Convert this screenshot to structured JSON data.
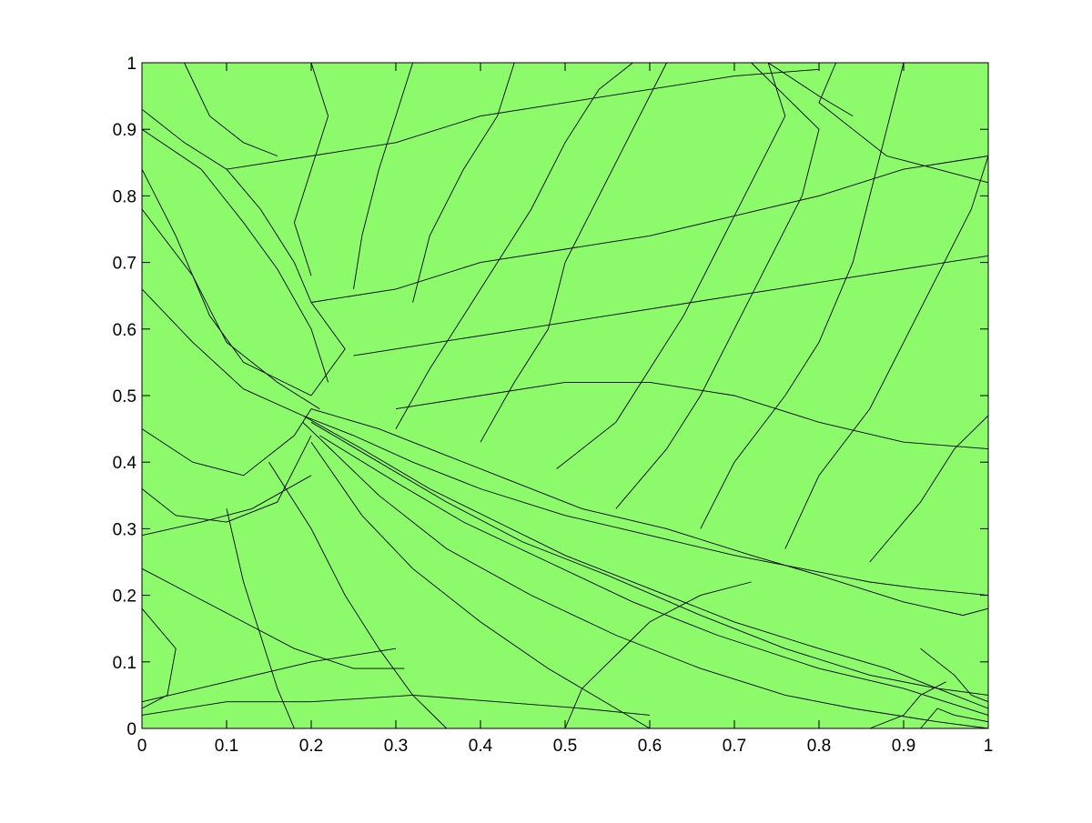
{
  "chart_data": {
    "type": "mesh",
    "title": "",
    "xlabel": "",
    "ylabel": "",
    "xlim": [
      0,
      1
    ],
    "ylim": [
      0,
      1
    ],
    "grid": false,
    "legend": "none",
    "x_ticks": [
      "0",
      "0.1",
      "0.2",
      "0.3",
      "0.4",
      "0.5",
      "0.6",
      "0.7",
      "0.8",
      "0.9",
      "1"
    ],
    "y_ticks": [
      "0",
      "0.1",
      "0.2",
      "0.3",
      "0.4",
      "0.5",
      "0.6",
      "0.7",
      "0.8",
      "0.9",
      "1"
    ],
    "fill_color": "#8CFA6B",
    "edge_color": "#000000",
    "mesh_polylines": [
      [
        [
          0,
          0.93
        ],
        [
          0.05,
          0.88
        ],
        [
          0.1,
          0.84
        ],
        [
          0.14,
          0.78
        ],
        [
          0.18,
          0.7
        ],
        [
          0.2,
          0.64
        ],
        [
          0.24,
          0.57
        ],
        [
          0.2,
          0.5
        ]
      ],
      [
        [
          0,
          0.9
        ],
        [
          0.07,
          0.84
        ],
        [
          0.12,
          0.76
        ],
        [
          0.16,
          0.69
        ],
        [
          0.2,
          0.6
        ],
        [
          0.22,
          0.52
        ]
      ],
      [
        [
          0,
          0.84
        ],
        [
          0.04,
          0.74
        ],
        [
          0.08,
          0.62
        ],
        [
          0.12,
          0.55
        ],
        [
          0.2,
          0.5
        ]
      ],
      [
        [
          0,
          0.78
        ],
        [
          0.06,
          0.68
        ],
        [
          0.1,
          0.58
        ],
        [
          0.16,
          0.52
        ],
        [
          0.21,
          0.48
        ]
      ],
      [
        [
          0,
          0.66
        ],
        [
          0.06,
          0.58
        ],
        [
          0.12,
          0.51
        ],
        [
          0.19,
          0.47
        ]
      ],
      [
        [
          0,
          0.45
        ],
        [
          0.06,
          0.4
        ],
        [
          0.12,
          0.38
        ],
        [
          0.18,
          0.44
        ],
        [
          0.2,
          0.48
        ]
      ],
      [
        [
          0,
          0.36
        ],
        [
          0.04,
          0.32
        ],
        [
          0.1,
          0.31
        ],
        [
          0.16,
          0.34
        ],
        [
          0.2,
          0.44
        ]
      ],
      [
        [
          0,
          0.29
        ],
        [
          0.07,
          0.31
        ],
        [
          0.13,
          0.33
        ],
        [
          0.2,
          0.38
        ]
      ],
      [
        [
          0.19,
          0.47
        ],
        [
          0.25,
          0.44
        ],
        [
          0.32,
          0.4
        ],
        [
          0.4,
          0.36
        ],
        [
          0.5,
          0.32
        ],
        [
          0.6,
          0.29
        ],
        [
          0.7,
          0.26
        ],
        [
          0.78,
          0.24
        ],
        [
          0.86,
          0.22
        ],
        [
          0.92,
          0.21
        ],
        [
          1,
          0.2
        ]
      ],
      [
        [
          0.2,
          0.48
        ],
        [
          0.28,
          0.45
        ],
        [
          0.36,
          0.41
        ],
        [
          0.44,
          0.37
        ],
        [
          0.52,
          0.33
        ],
        [
          0.62,
          0.3
        ],
        [
          0.72,
          0.26
        ],
        [
          0.8,
          0.23
        ],
        [
          0.9,
          0.19
        ],
        [
          0.97,
          0.17
        ],
        [
          1,
          0.18
        ]
      ],
      [
        [
          0.19,
          0.47
        ],
        [
          0.26,
          0.42
        ],
        [
          0.34,
          0.36
        ],
        [
          0.42,
          0.31
        ],
        [
          0.5,
          0.26
        ],
        [
          0.6,
          0.21
        ],
        [
          0.7,
          0.16
        ],
        [
          0.8,
          0.12
        ],
        [
          0.88,
          0.09
        ],
        [
          0.96,
          0.05
        ],
        [
          1,
          0.03
        ]
      ],
      [
        [
          0.2,
          0.46
        ],
        [
          0.28,
          0.4
        ],
        [
          0.36,
          0.34
        ],
        [
          0.45,
          0.28
        ],
        [
          0.55,
          0.23
        ],
        [
          0.66,
          0.17
        ],
        [
          0.76,
          0.12
        ],
        [
          0.86,
          0.08
        ],
        [
          0.94,
          0.06
        ],
        [
          1,
          0.05
        ]
      ],
      [
        [
          0.21,
          0.44
        ],
        [
          0.3,
          0.37
        ],
        [
          0.38,
          0.31
        ],
        [
          0.48,
          0.25
        ],
        [
          0.58,
          0.19
        ],
        [
          0.68,
          0.14
        ],
        [
          0.8,
          0.09
        ],
        [
          0.9,
          0.06
        ],
        [
          1,
          0.02
        ]
      ],
      [
        [
          0.19,
          0.46
        ],
        [
          0.28,
          0.35
        ],
        [
          0.36,
          0.27
        ],
        [
          0.46,
          0.2
        ],
        [
          0.56,
          0.14
        ],
        [
          0.66,
          0.09
        ],
        [
          0.76,
          0.05
        ],
        [
          0.84,
          0.03
        ],
        [
          0.94,
          0.01
        ],
        [
          1,
          0.0
        ]
      ],
      [
        [
          0.2,
          0.43
        ],
        [
          0.26,
          0.32
        ],
        [
          0.32,
          0.24
        ],
        [
          0.4,
          0.16
        ],
        [
          0.48,
          0.09
        ],
        [
          0.56,
          0.03
        ],
        [
          0.6,
          0.0
        ]
      ],
      [
        [
          0.15,
          0.4
        ],
        [
          0.2,
          0.3
        ],
        [
          0.24,
          0.2
        ],
        [
          0.28,
          0.12
        ],
        [
          0.32,
          0.05
        ],
        [
          0.36,
          0.0
        ]
      ],
      [
        [
          0.1,
          0.33
        ],
        [
          0.12,
          0.22
        ],
        [
          0.14,
          0.14
        ],
        [
          0.16,
          0.06
        ],
        [
          0.18,
          0.0
        ]
      ],
      [
        [
          0,
          0.24
        ],
        [
          0.06,
          0.2
        ],
        [
          0.12,
          0.16
        ],
        [
          0.18,
          0.12
        ],
        [
          0.25,
          0.09
        ],
        [
          0.31,
          0.09
        ]
      ],
      [
        [
          0,
          0.18
        ],
        [
          0.04,
          0.12
        ],
        [
          0.03,
          0.05
        ],
        [
          0,
          0.03
        ]
      ],
      [
        [
          0,
          0.04
        ],
        [
          0.1,
          0.07
        ],
        [
          0.2,
          0.1
        ],
        [
          0.3,
          0.12
        ]
      ],
      [
        [
          0,
          0.02
        ],
        [
          0.1,
          0.04
        ],
        [
          0.2,
          0.04
        ],
        [
          0.32,
          0.05
        ],
        [
          0.42,
          0.04
        ],
        [
          0.52,
          0.03
        ],
        [
          0.6,
          0.02
        ]
      ],
      [
        [
          0.49,
          0.39
        ],
        [
          0.56,
          0.46
        ],
        [
          0.6,
          0.54
        ],
        [
          0.64,
          0.62
        ],
        [
          0.68,
          0.72
        ],
        [
          0.72,
          0.82
        ],
        [
          0.76,
          0.92
        ],
        [
          0.74,
          1.0
        ]
      ],
      [
        [
          0.56,
          0.33
        ],
        [
          0.62,
          0.42
        ],
        [
          0.66,
          0.5
        ],
        [
          0.7,
          0.6
        ],
        [
          0.74,
          0.7
        ],
        [
          0.78,
          0.8
        ],
        [
          0.8,
          0.9
        ],
        [
          0.72,
          1.0
        ]
      ],
      [
        [
          0.66,
          0.3
        ],
        [
          0.7,
          0.4
        ],
        [
          0.76,
          0.5
        ],
        [
          0.8,
          0.58
        ],
        [
          0.84,
          0.7
        ],
        [
          0.86,
          0.8
        ],
        [
          0.88,
          0.9
        ],
        [
          0.9,
          1.0
        ]
      ],
      [
        [
          0.76,
          0.27
        ],
        [
          0.8,
          0.38
        ],
        [
          0.86,
          0.48
        ],
        [
          0.9,
          0.58
        ],
        [
          0.94,
          0.68
        ],
        [
          0.98,
          0.78
        ],
        [
          1,
          0.86
        ]
      ],
      [
        [
          0.86,
          0.25
        ],
        [
          0.92,
          0.34
        ],
        [
          0.96,
          0.42
        ],
        [
          1,
          0.47
        ]
      ],
      [
        [
          0.3,
          0.45
        ],
        [
          0.34,
          0.54
        ],
        [
          0.38,
          0.62
        ],
        [
          0.42,
          0.7
        ],
        [
          0.46,
          0.78
        ],
        [
          0.5,
          0.88
        ],
        [
          0.54,
          0.96
        ],
        [
          0.58,
          1.0
        ]
      ],
      [
        [
          0.4,
          0.43
        ],
        [
          0.44,
          0.52
        ],
        [
          0.48,
          0.6
        ],
        [
          0.5,
          0.7
        ],
        [
          0.54,
          0.8
        ],
        [
          0.58,
          0.9
        ],
        [
          0.62,
          1.0
        ]
      ],
      [
        [
          0.2,
          0.64
        ],
        [
          0.3,
          0.66
        ],
        [
          0.4,
          0.7
        ],
        [
          0.5,
          0.72
        ],
        [
          0.6,
          0.74
        ],
        [
          0.7,
          0.77
        ],
        [
          0.8,
          0.8
        ],
        [
          0.9,
          0.84
        ],
        [
          1,
          0.86
        ]
      ],
      [
        [
          0.1,
          0.84
        ],
        [
          0.2,
          0.86
        ],
        [
          0.3,
          0.88
        ],
        [
          0.4,
          0.92
        ],
        [
          0.5,
          0.94
        ],
        [
          0.6,
          0.96
        ],
        [
          0.7,
          0.98
        ],
        [
          0.8,
          0.99
        ]
      ],
      [
        [
          0.25,
          0.56
        ],
        [
          0.35,
          0.58
        ],
        [
          0.45,
          0.6
        ],
        [
          0.55,
          0.62
        ],
        [
          0.65,
          0.64
        ],
        [
          0.75,
          0.66
        ],
        [
          0.85,
          0.68
        ],
        [
          0.95,
          0.7
        ],
        [
          1,
          0.71
        ]
      ],
      [
        [
          0.3,
          0.48
        ],
        [
          0.4,
          0.5
        ],
        [
          0.5,
          0.52
        ],
        [
          0.6,
          0.52
        ],
        [
          0.7,
          0.5
        ],
        [
          0.8,
          0.46
        ],
        [
          0.9,
          0.43
        ],
        [
          1,
          0.42
        ]
      ],
      [
        [
          0.05,
          1.0
        ],
        [
          0.08,
          0.92
        ],
        [
          0.12,
          0.88
        ],
        [
          0.16,
          0.86
        ]
      ],
      [
        [
          0.2,
          1.0
        ],
        [
          0.22,
          0.92
        ],
        [
          0.2,
          0.84
        ],
        [
          0.18,
          0.76
        ],
        [
          0.2,
          0.68
        ]
      ],
      [
        [
          0.32,
          1.0
        ],
        [
          0.3,
          0.92
        ],
        [
          0.28,
          0.84
        ],
        [
          0.26,
          0.74
        ],
        [
          0.25,
          0.66
        ]
      ],
      [
        [
          0.44,
          1.0
        ],
        [
          0.42,
          0.92
        ],
        [
          0.38,
          0.84
        ],
        [
          0.34,
          0.74
        ],
        [
          0.32,
          0.64
        ]
      ],
      [
        [
          0.82,
          1.0
        ],
        [
          0.8,
          0.94
        ],
        [
          0.84,
          0.9
        ],
        [
          0.88,
          0.86
        ],
        [
          0.94,
          0.84
        ],
        [
          1,
          0.82
        ]
      ],
      [
        [
          0.74,
          1.0
        ],
        [
          0.8,
          0.95
        ],
        [
          0.84,
          0.92
        ]
      ],
      [
        [
          0.92,
          0.12
        ],
        [
          0.96,
          0.08
        ],
        [
          0.98,
          0.05
        ],
        [
          1,
          0.04
        ]
      ],
      [
        [
          0.92,
          0.0
        ],
        [
          0.94,
          0.03
        ],
        [
          0.96,
          0.02
        ],
        [
          1,
          0.01
        ]
      ],
      [
        [
          0.86,
          0.0
        ],
        [
          0.9,
          0.02
        ],
        [
          0.92,
          0.05
        ],
        [
          0.95,
          0.07
        ]
      ],
      [
        [
          0.5,
          0.0
        ],
        [
          0.52,
          0.06
        ],
        [
          0.56,
          0.11
        ],
        [
          0.6,
          0.16
        ],
        [
          0.66,
          0.2
        ],
        [
          0.72,
          0.22
        ]
      ]
    ]
  }
}
